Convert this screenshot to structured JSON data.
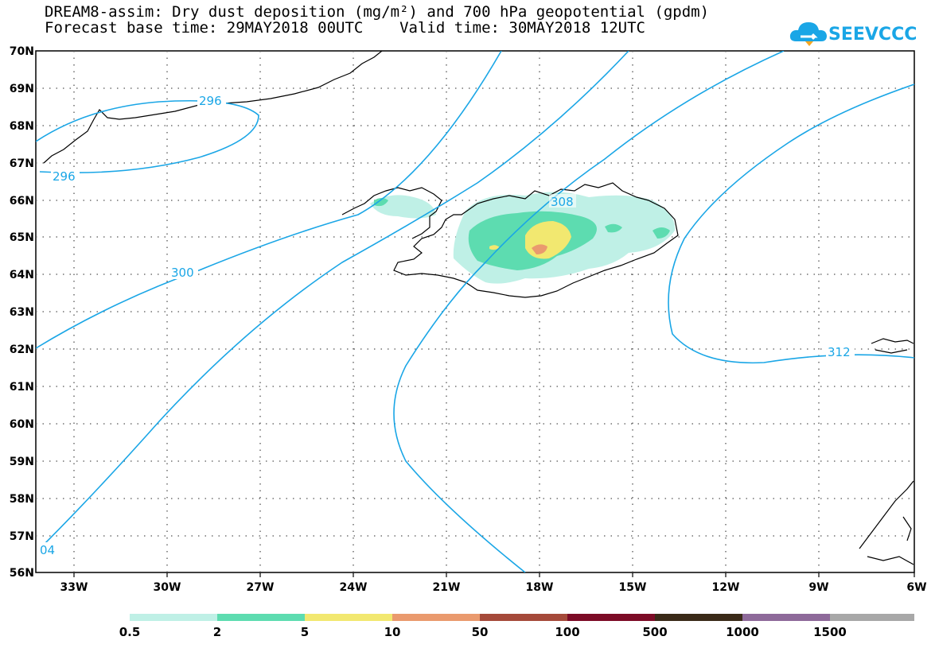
{
  "header": {
    "title_line1": "DREAM8-assim: Dry dust deposition (mg/m²) and 700 hPa geopotential (gpdm)",
    "title_line2": "Forecast base time: 29MAY2018 00UTC    Valid time: 30MAY2018 12UTC"
  },
  "logo": {
    "text": "SEEVCCC",
    "icon": "cloud-icon",
    "color": "#1aa6e6"
  },
  "map": {
    "lat_labels": [
      "70N",
      "69N",
      "68N",
      "67N",
      "66N",
      "65N",
      "64N",
      "63N",
      "62N",
      "61N",
      "60N",
      "59N",
      "58N",
      "57N",
      "56N"
    ],
    "lon_labels": [
      "33W",
      "30W",
      "27W",
      "24W",
      "21W",
      "18W",
      "15W",
      "12W",
      "9W",
      "6W"
    ],
    "contour_color": "#1aa6e6",
    "contour_labels": [
      "296",
      "296",
      "300",
      "308",
      "312",
      "04"
    ]
  },
  "legend": {
    "colors": [
      "#bff0e6",
      "#5ddcb0",
      "#f2e870",
      "#ea9a6e",
      "#a54a3a",
      "#7c0b26",
      "#3a2a18",
      "#8e6a9a",
      "#a8a8a8"
    ],
    "labels": [
      "0.5",
      "2",
      "5",
      "10",
      "50",
      "100",
      "500",
      "1000",
      "1500"
    ]
  }
}
